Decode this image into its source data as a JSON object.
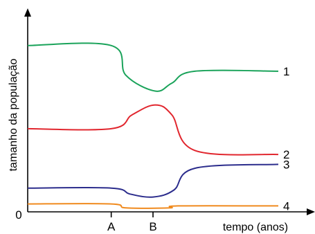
{
  "chart_data": {
    "type": "line",
    "ylabel": "tamanho da população",
    "xlabel": "tempo (anos)",
    "origin_label": "0",
    "x_tick_labels": [
      {
        "label": "A",
        "x": 2.0
      },
      {
        "label": "B",
        "x": 3.0
      }
    ],
    "xlim": [
      0,
      6
    ],
    "ylim": [
      0,
      100
    ],
    "series": [
      {
        "name": "1",
        "color": "#1aa35a",
        "points": [
          [
            0,
            84
          ],
          [
            2.0,
            84
          ],
          [
            2.35,
            69
          ],
          [
            3.05,
            61
          ],
          [
            3.45,
            65
          ],
          [
            4.0,
            71
          ],
          [
            6.0,
            71
          ]
        ]
      },
      {
        "name": "2",
        "color": "#e1262e",
        "points": [
          [
            0,
            42
          ],
          [
            2.0,
            42
          ],
          [
            2.5,
            49
          ],
          [
            3.05,
            54
          ],
          [
            3.45,
            49
          ],
          [
            4.0,
            31
          ],
          [
            6.0,
            29
          ]
        ]
      },
      {
        "name": "3",
        "color": "#2b2c8c",
        "points": [
          [
            0,
            12
          ],
          [
            2.0,
            12
          ],
          [
            2.45,
            9
          ],
          [
            3.0,
            7.5
          ],
          [
            3.5,
            11
          ],
          [
            4.0,
            22
          ],
          [
            6.0,
            24
          ]
        ]
      },
      {
        "name": "4",
        "color": "#f08a1e",
        "points": [
          [
            0,
            4
          ],
          [
            2.0,
            4
          ],
          [
            2.35,
            2
          ],
          [
            3.4,
            2
          ],
          [
            3.6,
            3
          ],
          [
            6.0,
            3
          ]
        ]
      }
    ]
  }
}
